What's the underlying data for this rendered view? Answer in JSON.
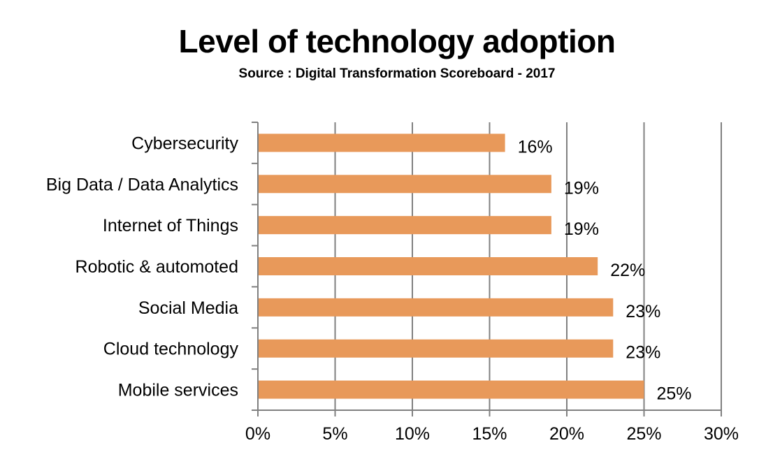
{
  "chart_data": {
    "type": "bar",
    "orientation": "horizontal",
    "title": "Level of technology adoption",
    "subtitle": "Source : Digital Transformation Scoreboard - 2017",
    "categories": [
      "Cybersecurity",
      "Big Data / Data Analytics",
      "Internet of Things",
      "Robotic & automoted",
      "Social Media",
      "Cloud technology",
      "Mobile services"
    ],
    "values": [
      0.16,
      0.19,
      0.19,
      0.22,
      0.23,
      0.23,
      0.25
    ],
    "data_labels": [
      "16%",
      "19%",
      "19%",
      "22%",
      "23%",
      "23%",
      "25%"
    ],
    "xlim": [
      0,
      0.3
    ],
    "xticks": [
      0,
      0.05,
      0.1,
      0.15,
      0.2,
      0.25,
      0.3
    ],
    "xtick_labels": [
      "0%",
      "5%",
      "10%",
      "15%",
      "20%",
      "25%",
      "30%"
    ],
    "xlabel": "",
    "ylabel": "",
    "grid": "vertical",
    "legend": "none",
    "bar_color": "#E8995A",
    "grid_color": "#808080"
  }
}
